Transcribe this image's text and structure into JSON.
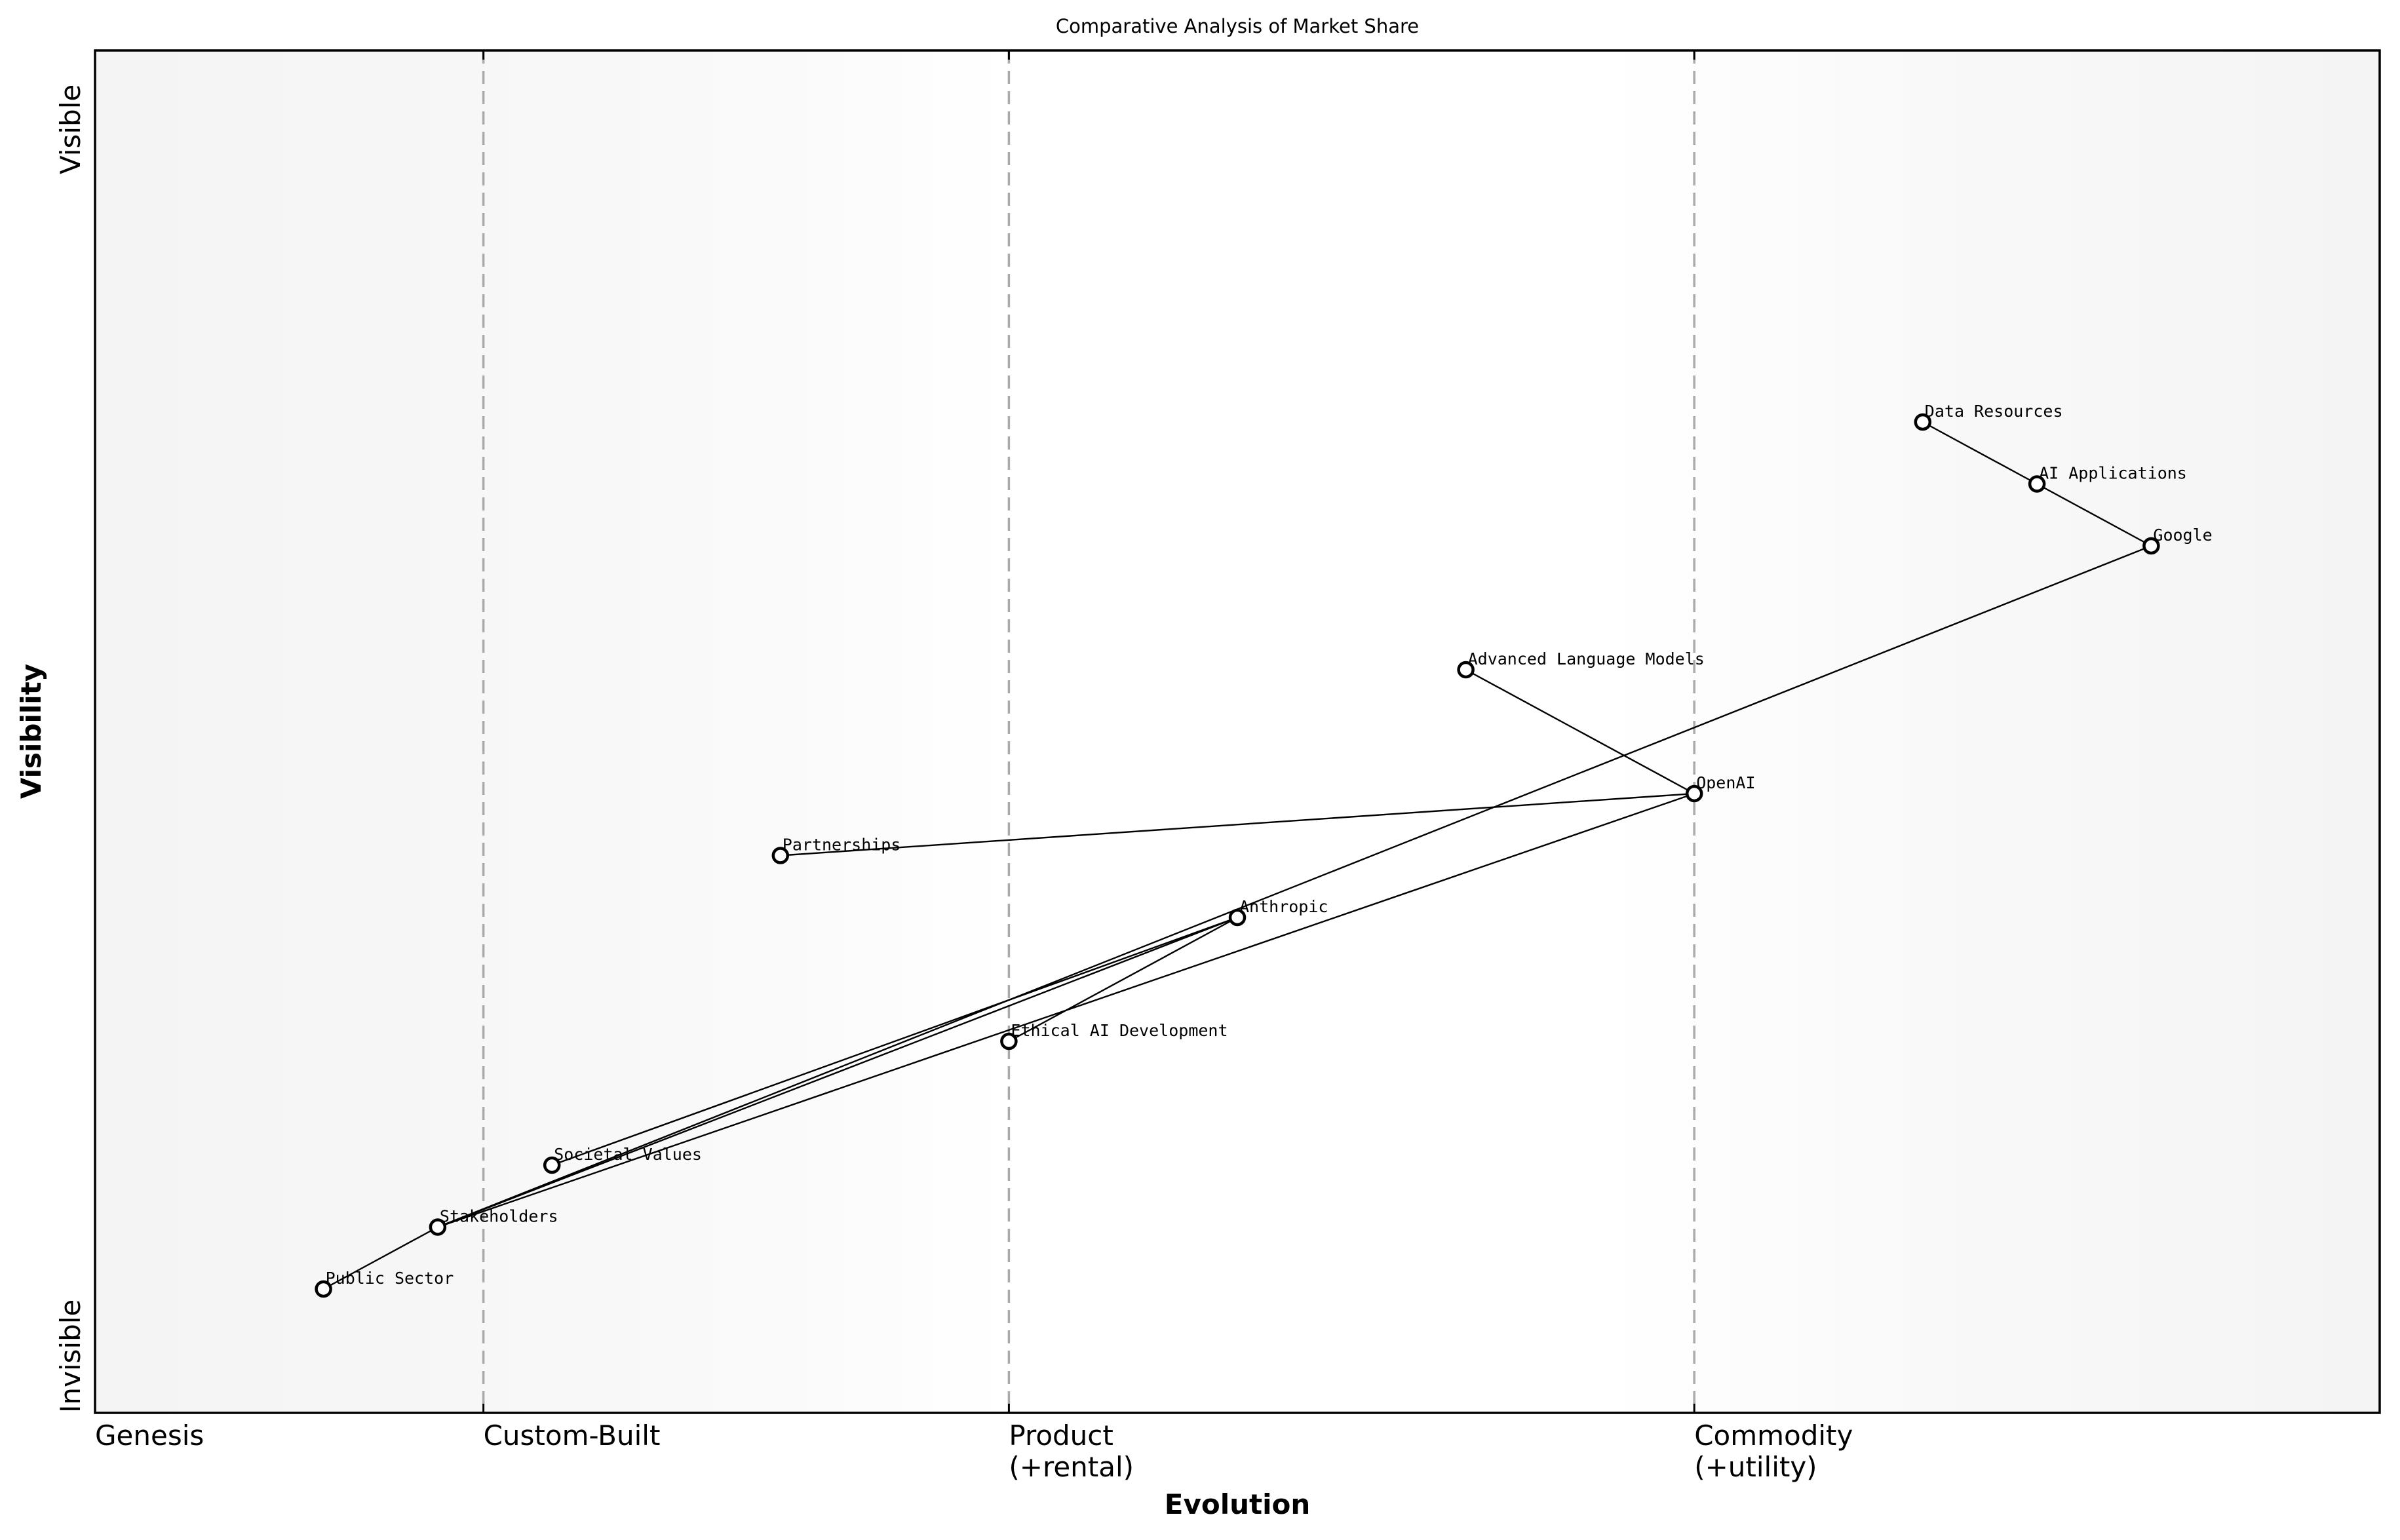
{
  "chart_data": {
    "type": "scatter",
    "subtype": "wardley-map",
    "title": "Comparative Analysis of Market Share",
    "xlabel": "Evolution",
    "ylabel": "Visibility",
    "xlim": [
      0,
      1
    ],
    "ylim": [
      0,
      1.1
    ],
    "grid": false,
    "legend": null,
    "x_stage_ticks": [
      {
        "x": 0.0,
        "label": "Genesis"
      },
      {
        "x": 0.17,
        "label": "Custom-Built"
      },
      {
        "x": 0.4,
        "label": "Product\n(+rental)",
        "line1": "Product",
        "line2": "(+rental)"
      },
      {
        "x": 0.7,
        "label": "Commodity\n(+utility)",
        "line1": "Commodity",
        "line2": "(+utility)"
      }
    ],
    "stage_dividers": [
      0.17,
      0.4,
      0.7
    ],
    "y_annotations": [
      {
        "label": "Visible",
        "y": 1.0
      },
      {
        "label": "Invisible",
        "y": 0.0
      }
    ],
    "nodes": [
      {
        "id": "public_sector",
        "label": "Public Sector",
        "x": 0.1,
        "y": 0.1
      },
      {
        "id": "stakeholders",
        "label": "Stakeholders",
        "x": 0.15,
        "y": 0.15
      },
      {
        "id": "societal_values",
        "label": "Societal Values",
        "x": 0.2,
        "y": 0.2
      },
      {
        "id": "ethical_ai",
        "label": "Ethical AI Development",
        "x": 0.4,
        "y": 0.3
      },
      {
        "id": "anthropic",
        "label": "Anthropic",
        "x": 0.5,
        "y": 0.4
      },
      {
        "id": "partnerships",
        "label": "Partnerships",
        "x": 0.3,
        "y": 0.45
      },
      {
        "id": "openai",
        "label": "OpenAI",
        "x": 0.7,
        "y": 0.5
      },
      {
        "id": "alm",
        "label": "Advanced Language Models",
        "x": 0.6,
        "y": 0.6
      },
      {
        "id": "google",
        "label": "Google",
        "x": 0.9,
        "y": 0.7
      },
      {
        "id": "ai_apps",
        "label": "AI Applications",
        "x": 0.85,
        "y": 0.75
      },
      {
        "id": "data_resources",
        "label": "Data Resources",
        "x": 0.8,
        "y": 0.8
      }
    ],
    "edges": [
      [
        "public_sector",
        "stakeholders"
      ],
      [
        "stakeholders",
        "anthropic"
      ],
      [
        "stakeholders",
        "google"
      ],
      [
        "stakeholders",
        "openai"
      ],
      [
        "societal_values",
        "anthropic"
      ],
      [
        "anthropic",
        "ethical_ai"
      ],
      [
        "partnerships",
        "openai"
      ],
      [
        "alm",
        "openai"
      ],
      [
        "data_resources",
        "ai_apps"
      ],
      [
        "ai_apps",
        "google"
      ]
    ],
    "colors": {
      "background_edge": "#f5f5f5",
      "background_center": "#ffffff",
      "divider": "#aaaaaa",
      "node_fill": "#ffffff",
      "node_stroke": "#000000",
      "edge": "#000000"
    }
  }
}
